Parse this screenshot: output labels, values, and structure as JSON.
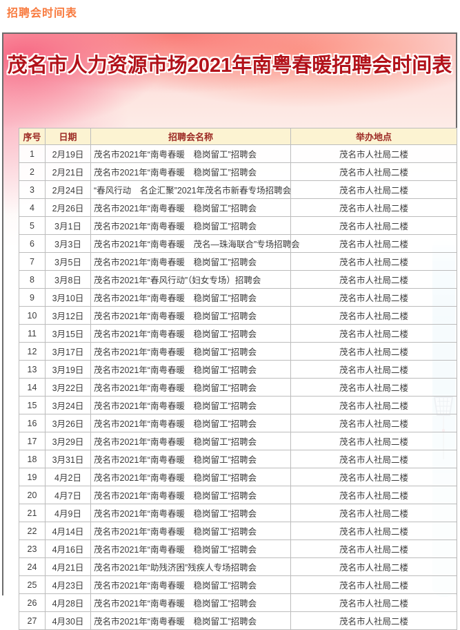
{
  "page": {
    "top_label": "招聘会时间表"
  },
  "poster": {
    "title": "茂名市人力资源市场2021年南粤春暖招聘会时间表",
    "colors": {
      "top_label_orange": "#f87a3e",
      "title_red": "#b2121a",
      "header_bg": "#fcf3d2",
      "header_text": "#9c2a24",
      "watercolor_pink": "#f65f7d",
      "watercolor_blue": "#86c9e3"
    }
  },
  "table": {
    "headers": [
      "序号",
      "日期",
      "招聘会名称",
      "举办地点"
    ],
    "rows": [
      [
        "1",
        "2月19日",
        "茂名市2021年“南粤春暖　稳岗留工”招聘会",
        "茂名市人社局二楼"
      ],
      [
        "2",
        "2月21日",
        "茂名市2021年“南粤春暖　稳岗留工”招聘会",
        "茂名市人社局二楼"
      ],
      [
        "3",
        "2月24日",
        "“春风行动　名企汇聚”2021年茂名市新春专场招聘会",
        "茂名市人社局二楼"
      ],
      [
        "4",
        "2月26日",
        "茂名市2021年“南粤春暖　稳岗留工”招聘会",
        "茂名市人社局二楼"
      ],
      [
        "5",
        "3月1日",
        "茂名市2021年“南粤春暖　稳岗留工”招聘会",
        "茂名市人社局二楼"
      ],
      [
        "6",
        "3月3日",
        "茂名市2021年“南粤春暖　茂名—珠海联合”专场招聘会",
        "茂名市人社局二楼"
      ],
      [
        "7",
        "3月5日",
        "茂名市2021年“南粤春暖　稳岗留工”招聘会",
        "茂名市人社局二楼"
      ],
      [
        "8",
        "3月8日",
        "茂名市2021年“春风行动”（妇女专场）招聘会",
        "茂名市人社局二楼"
      ],
      [
        "9",
        "3月10日",
        "茂名市2021年“南粤春暖　稳岗留工”招聘会",
        "茂名市人社局二楼"
      ],
      [
        "10",
        "3月12日",
        "茂名市2021年“南粤春暖　稳岗留工”招聘会",
        "茂名市人社局二楼"
      ],
      [
        "11",
        "3月15日",
        "茂名市2021年“南粤春暖　稳岗留工”招聘会",
        "茂名市人社局二楼"
      ],
      [
        "12",
        "3月17日",
        "茂名市2021年“南粤春暖　稳岗留工”招聘会",
        "茂名市人社局二楼"
      ],
      [
        "13",
        "3月19日",
        "茂名市2021年“南粤春暖　稳岗留工”招聘会",
        "茂名市人社局二楼"
      ],
      [
        "14",
        "3月22日",
        "茂名市2021年“南粤春暖　稳岗留工”招聘会",
        "茂名市人社局二楼"
      ],
      [
        "15",
        "3月24日",
        "茂名市2021年“南粤春暖　稳岗留工”招聘会",
        "茂名市人社局二楼"
      ],
      [
        "16",
        "3月26日",
        "茂名市2021年“南粤春暖　稳岗留工”招聘会",
        "茂名市人社局二楼"
      ],
      [
        "17",
        "3月29日",
        "茂名市2021年“南粤春暖　稳岗留工”招聘会",
        "茂名市人社局二楼"
      ],
      [
        "18",
        "3月31日",
        "茂名市2021年“南粤春暖　稳岗留工”招聘会",
        "茂名市人社局二楼"
      ],
      [
        "19",
        "4月2日",
        "茂名市2021年“南粤春暖　稳岗留工”招聘会",
        "茂名市人社局二楼"
      ],
      [
        "20",
        "4月7日",
        "茂名市2021年“南粤春暖　稳岗留工”招聘会",
        "茂名市人社局二楼"
      ],
      [
        "21",
        "4月9日",
        "茂名市2021年“南粤春暖　稳岗留工”招聘会",
        "茂名市人社局二楼"
      ],
      [
        "22",
        "4月14日",
        "茂名市2021年“南粤春暖　稳岗留工”招聘会",
        "茂名市人社局二楼"
      ],
      [
        "23",
        "4月16日",
        "茂名市2021年“南粤春暖　稳岗留工”招聘会",
        "茂名市人社局二楼"
      ],
      [
        "24",
        "4月21日",
        "茂名市2021年“助残济困”残疾人专场招聘会",
        "茂名市人社局二楼"
      ],
      [
        "25",
        "4月23日",
        "茂名市2021年“南粤春暖　稳岗留工”招聘会",
        "茂名市人社局二楼"
      ],
      [
        "26",
        "4月28日",
        "茂名市2021年“南粤春暖　稳岗留工”招聘会",
        "茂名市人社局二楼"
      ],
      [
        "27",
        "4月30日",
        "茂名市2021年“南粤春暖　稳岗留工”招聘会",
        "茂名市人社局二楼"
      ]
    ]
  }
}
